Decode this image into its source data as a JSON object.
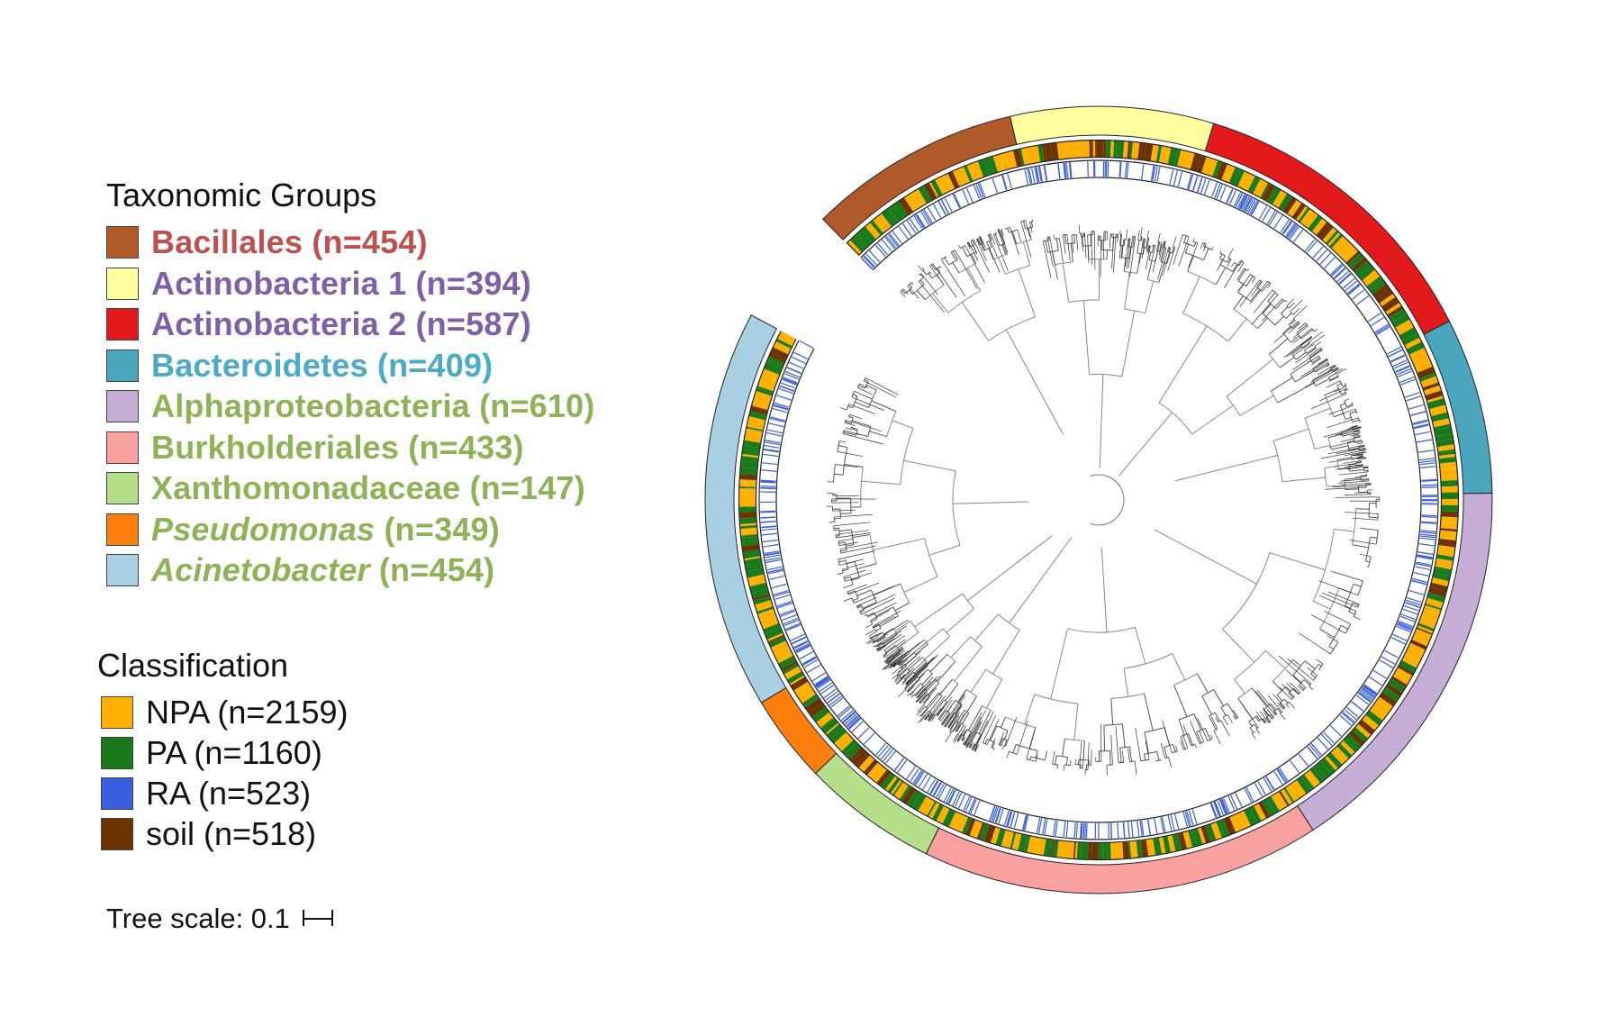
{
  "legend": {
    "taxonomic_title": "Taxonomic Groups",
    "taxonomic_groups": [
      {
        "name": "Bacillales",
        "count": "(n=454)",
        "swatch": "#b05a2a",
        "text_color": "#c0504d",
        "italic": false
      },
      {
        "name": "Actinobacteria 1",
        "count": "(n=394)",
        "swatch": "#ffffa0",
        "text_color": "#7f5fa8",
        "italic": false
      },
      {
        "name": "Actinobacteria 2",
        "count": "(n=587)",
        "swatch": "#e31a1c",
        "text_color": "#7f5fa8",
        "italic": false
      },
      {
        "name": "Bacteroidetes",
        "count": "(n=409)",
        "swatch": "#4aa5be",
        "text_color": "#4aabc6",
        "italic": false
      },
      {
        "name": "Alphaproteobacteria",
        "count": "(n=610)",
        "swatch": "#c6aed6",
        "text_color": "#8db356",
        "italic": false
      },
      {
        "name": "Burkholderiales",
        "count": "(n=433)",
        "swatch": "#f9a0a0",
        "text_color": "#8db356",
        "italic": false
      },
      {
        "name": "Xanthomonadaceae",
        "count": "(n=147)",
        "swatch": "#b5df8a",
        "text_color": "#8db356",
        "italic": false
      },
      {
        "name": "Pseudomonas",
        "count": "(n=349)",
        "swatch": "#ff7f0e",
        "text_color": "#8db356",
        "italic": true
      },
      {
        "name": "Acinetobacter",
        "count": "(n=454)",
        "swatch": "#a9cfe3",
        "text_color": "#8db356",
        "italic": true
      }
    ],
    "classification_title": "Classification",
    "classification": [
      {
        "label": "NPA (n=2159)",
        "swatch": "#ffb000"
      },
      {
        "label": "PA (n=1160)",
        "swatch": "#1a7a1a"
      },
      {
        "label": "RA (n=523)",
        "swatch": "#3a5fe0"
      },
      {
        "label": "soil (n=518)",
        "swatch": "#6a3300"
      }
    ],
    "tree_scale": "Tree scale: 0.1"
  },
  "rings": {
    "outer_segments": [
      {
        "group": "Bacillales",
        "color": "#b05a2a"
      },
      {
        "group": "Actinobacteria 1",
        "color": "#ffffa0"
      },
      {
        "group": "Actinobacteria 2",
        "color": "#e31a1c"
      },
      {
        "group": "Bacteroidetes",
        "color": "#4aa5be"
      },
      {
        "group": "Alphaproteobacteria",
        "color": "#c6aed6"
      },
      {
        "group": "Burkholderiales",
        "color": "#f9a0a0"
      },
      {
        "group": "Xanthomonadaceae",
        "color": "#b5df8a"
      },
      {
        "group": "Pseudomonas",
        "color": "#ff7f0e"
      },
      {
        "group": "Acinetobacter",
        "color": "#a9cfe3"
      }
    ],
    "classification_colors": [
      "#ffb000",
      "#1a7a1a",
      "#6a3300"
    ],
    "ra_color": "#3a5fe0"
  }
}
